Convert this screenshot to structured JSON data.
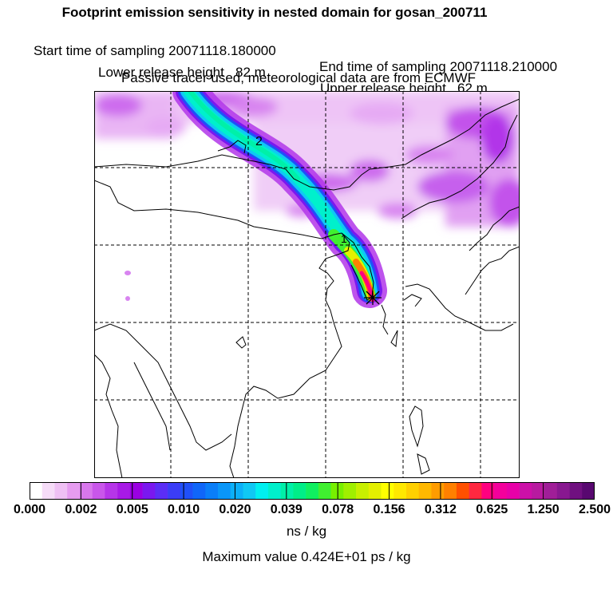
{
  "header": {
    "title": "Footprint emission sensitivity in nested domain for gosan_200711",
    "start_label": "Start time of sampling 20071118.180000",
    "end_label": "End time of sampling 20071118.210000",
    "lower_label": "Lower release height   82 m",
    "upper_label": "Upper release height   62 m",
    "tracer_label": "Passive tracer used, meteorological data are from ECMWF"
  },
  "map": {
    "trajectory_labels": [
      "2",
      "1"
    ],
    "release_site_marker": "asterisk-icon"
  },
  "colorbar": {
    "tick_labels": [
      "0.000",
      "0.002",
      "0.005",
      "0.010",
      "0.020",
      "0.039",
      "0.078",
      "0.156",
      "0.312",
      "0.625",
      "1.250",
      "2.500"
    ],
    "colors": [
      "#ffffff",
      "#f6dcf8",
      "#efc0f4",
      "#e69cf0",
      "#d877ec",
      "#c956ea",
      "#b635e8",
      "#a81ae6",
      "#9a00e2",
      "#7a18ef",
      "#5b2ef6",
      "#3b3df7",
      "#2050f8",
      "#1066f8",
      "#0a7ef8",
      "#0a96f8",
      "#0cb0f8",
      "#10c8f4",
      "#00f0f0",
      "#00f0cc",
      "#00f0a8",
      "#00ee88",
      "#10f060",
      "#40f030",
      "#78f000",
      "#a0f000",
      "#c8f000",
      "#e4f000",
      "#ffff00",
      "#ffe800",
      "#ffd000",
      "#ffb800",
      "#ff9c00",
      "#ff8000",
      "#ff5000",
      "#ff2840",
      "#ff0080",
      "#f4009c",
      "#e800a8",
      "#cc10a8",
      "#b81aa0",
      "#a01e98",
      "#881890",
      "#701080",
      "#580870"
    ],
    "units": "ns / kg",
    "maximum": "Maximum value  0.424E+01 ps / kg"
  }
}
